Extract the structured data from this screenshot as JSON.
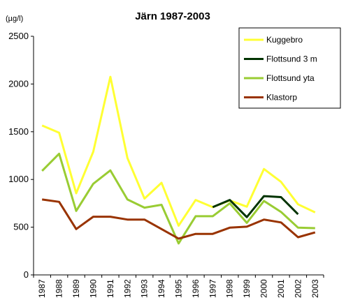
{
  "chart_data": {
    "type": "line",
    "title": "Järn 1987-2003",
    "ylabel": "(µg/l)",
    "xlabel": "",
    "ylim": [
      0,
      2500
    ],
    "yticks": [
      "0",
      "500",
      "1000",
      "1500",
      "2000",
      "2500"
    ],
    "categories": [
      "1987",
      "1988",
      "1989",
      "1990",
      "1991",
      "1992",
      "1993",
      "1994",
      "1995",
      "1996",
      "1997",
      "1998",
      "1999",
      "2000",
      "2001",
      "2002",
      "2003"
    ],
    "legend_position": "top-right",
    "grid": false,
    "series": [
      {
        "name": "Kuggebro",
        "color": "#ffff33",
        "values": [
          1565,
          1490,
          855,
          1290,
          2075,
          1225,
          800,
          965,
          515,
          785,
          710,
          780,
          715,
          1110,
          975,
          740,
          655
        ]
      },
      {
        "name": "Flottsund 3 m",
        "color": "#003300",
        "values": [
          null,
          null,
          null,
          null,
          null,
          null,
          null,
          null,
          null,
          null,
          710,
          785,
          605,
          825,
          815,
          635,
          null
        ]
      },
      {
        "name": "Flottsund yta",
        "color": "#99cc33",
        "values": [
          1090,
          1270,
          670,
          955,
          1095,
          790,
          705,
          735,
          330,
          615,
          615,
          750,
          545,
          775,
          660,
          495,
          490
        ]
      },
      {
        "name": "Klastorp",
        "color": "#993300",
        "values": [
          790,
          765,
          480,
          610,
          610,
          580,
          580,
          480,
          380,
          430,
          430,
          495,
          505,
          580,
          550,
          395,
          445
        ]
      }
    ]
  }
}
